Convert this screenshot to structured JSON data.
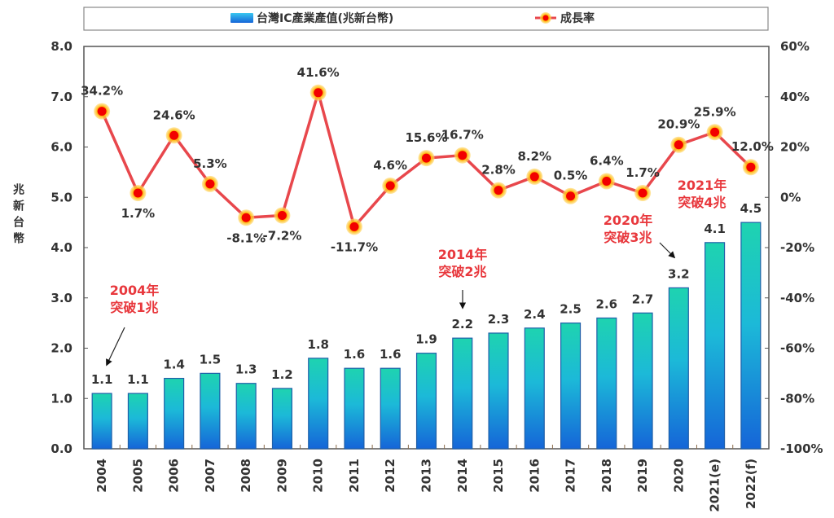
{
  "chart_data": {
    "type": "bar+line",
    "title": "",
    "categories": [
      "2004",
      "2005",
      "2006",
      "2007",
      "2008",
      "2009",
      "2010",
      "2011",
      "2012",
      "2013",
      "2014",
      "2015",
      "2016",
      "2017",
      "2018",
      "2019",
      "2020",
      "2021(e)",
      "2022(f)"
    ],
    "series": [
      {
        "name": "台灣IC產業產值(兆新台幣)",
        "type": "bar",
        "axis": "left",
        "values": [
          1.1,
          1.1,
          1.4,
          1.5,
          1.3,
          1.2,
          1.8,
          1.6,
          1.6,
          1.9,
          2.2,
          2.3,
          2.4,
          2.5,
          2.6,
          2.7,
          3.2,
          4.1,
          4.5
        ],
        "labels": [
          "1.1",
          "1.1",
          "1.4",
          "1.5",
          "1.3",
          "1.2",
          "1.8",
          "1.6",
          "1.6",
          "1.9",
          "2.2",
          "2.3",
          "2.4",
          "2.5",
          "2.6",
          "2.7",
          "3.2",
          "4.1",
          "4.5"
        ],
        "color_top": "#1ed3b0",
        "color_bottom": "#1565d8",
        "edge_color": "#1f5fa8"
      },
      {
        "name": "成長率",
        "type": "line",
        "axis": "right",
        "values": [
          34.2,
          1.7,
          24.6,
          5.3,
          -8.1,
          -7.2,
          41.6,
          -11.7,
          4.6,
          15.6,
          16.7,
          2.8,
          8.2,
          0.5,
          6.4,
          1.7,
          20.9,
          25.9,
          12.0
        ],
        "labels": [
          "34.2%",
          "1.7%",
          "24.6%",
          "5.3%",
          "-8.1%",
          "-7.2%",
          "41.6%",
          "-11.7%",
          "4.6%",
          "15.6%",
          "16.7%",
          "2.8%",
          "8.2%",
          "0.5%",
          "6.4%",
          "1.7%",
          "20.9%",
          "25.9%",
          "12.0%"
        ],
        "label_positions": [
          "above",
          "below",
          "above",
          "above",
          "below",
          "below",
          "above",
          "below",
          "above",
          "above",
          "above",
          "above",
          "above",
          "above",
          "above",
          "above",
          "above",
          "above",
          "above"
        ],
        "line_color": "#e8474c",
        "marker_color": "#f20000",
        "marker_glow": "#ffc21a"
      }
    ],
    "y_left": {
      "label": "兆新台幣",
      "ylim": [
        0,
        8
      ],
      "ticks": [
        "0.0",
        "1.0",
        "2.0",
        "3.0",
        "4.0",
        "5.0",
        "6.0",
        "7.0",
        "8.0"
      ]
    },
    "y_right": {
      "ylim": [
        -100,
        60
      ],
      "ticks": [
        "-100%",
        "-80%",
        "-60%",
        "-40%",
        "-20%",
        "0%",
        "20%",
        "40%",
        "60%"
      ]
    },
    "xlabel": "",
    "grid": false,
    "legend": {
      "placement": "top",
      "entries": [
        "台灣IC產業產值(兆新台幣)",
        "成長率"
      ]
    },
    "annotations": [
      {
        "category": "2004",
        "lines": [
          "2004年",
          "突破1兆"
        ]
      },
      {
        "category": "2014",
        "lines": [
          "2014年",
          "突破2兆"
        ]
      },
      {
        "category": "2020",
        "lines": [
          "2020年",
          "突破3兆"
        ]
      },
      {
        "category": "2021(e)",
        "lines": [
          "2021年",
          "突破4兆"
        ]
      }
    ],
    "annotation_color": "#e8383d"
  }
}
